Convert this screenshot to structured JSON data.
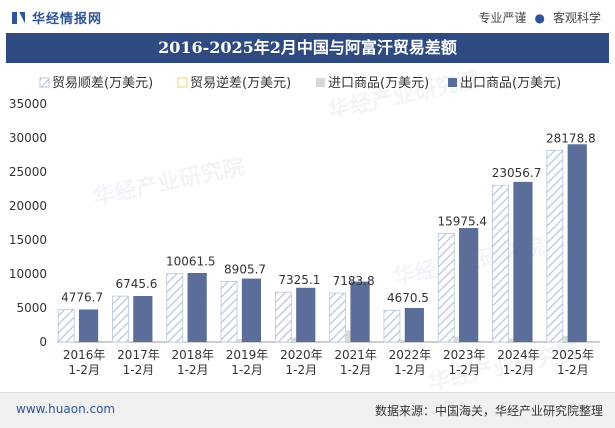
{
  "header": {
    "logo_text": "华经情报网",
    "tag1": "专业严谨",
    "tag_sep": "●",
    "tag2": "客观科学"
  },
  "chart_data": {
    "type": "bar",
    "title": "2016-2025年2月中国与阿富汗贸易差额",
    "categories": [
      "2016年 1-2月",
      "2017年 1-2月",
      "2018年 1-2月",
      "2019年 1-2月",
      "2020年 1-2月",
      "2021年 1-2月",
      "2022年 1-2月",
      "2023年 1-2月",
      "2024年 1-2月",
      "2025年 1-2月"
    ],
    "series": [
      {
        "name": "贸易顺差(万美元)",
        "values": [
          4776.7,
          6745.6,
          10061.5,
          8905.7,
          7325.1,
          7183.8,
          4670.5,
          15975.4,
          23056.7,
          28178.8
        ],
        "color": "#c9d6ea"
      },
      {
        "name": "贸易逆差(万美元)",
        "values": [
          0,
          0,
          0,
          0,
          0,
          0,
          0,
          0,
          0,
          0
        ],
        "color": "#e8d77a"
      },
      {
        "name": "进口商品(万美元)",
        "values": [
          10,
          20,
          90,
          420,
          650,
          1700,
          330,
          780,
          490,
          900
        ],
        "color": "#d9d9d9"
      },
      {
        "name": "出口商品(万美元)",
        "values": [
          4786.7,
          6765.6,
          10151.5,
          9325.7,
          7975.1,
          8883.8,
          5000.5,
          16755.4,
          23546.7,
          29078.8
        ],
        "color": "#5b6e99"
      }
    ],
    "data_labels": [
      "4776.7",
      "6745.6",
      "10061.5",
      "8905.7",
      "7325.1",
      "7183.8",
      "4670.5",
      "15975.4",
      "23056.7",
      "28178.8"
    ],
    "ylim": [
      0,
      35000
    ],
    "yticks": [
      "0",
      "5000",
      "10000",
      "15000",
      "20000",
      "25000",
      "30000",
      "35000"
    ],
    "legend_position": "top",
    "grid": false
  },
  "watermark": "华经产业研究院",
  "footer": {
    "website": "www.huaon.com",
    "source": "数据来源：中国海关，华经产业研究院整理"
  }
}
